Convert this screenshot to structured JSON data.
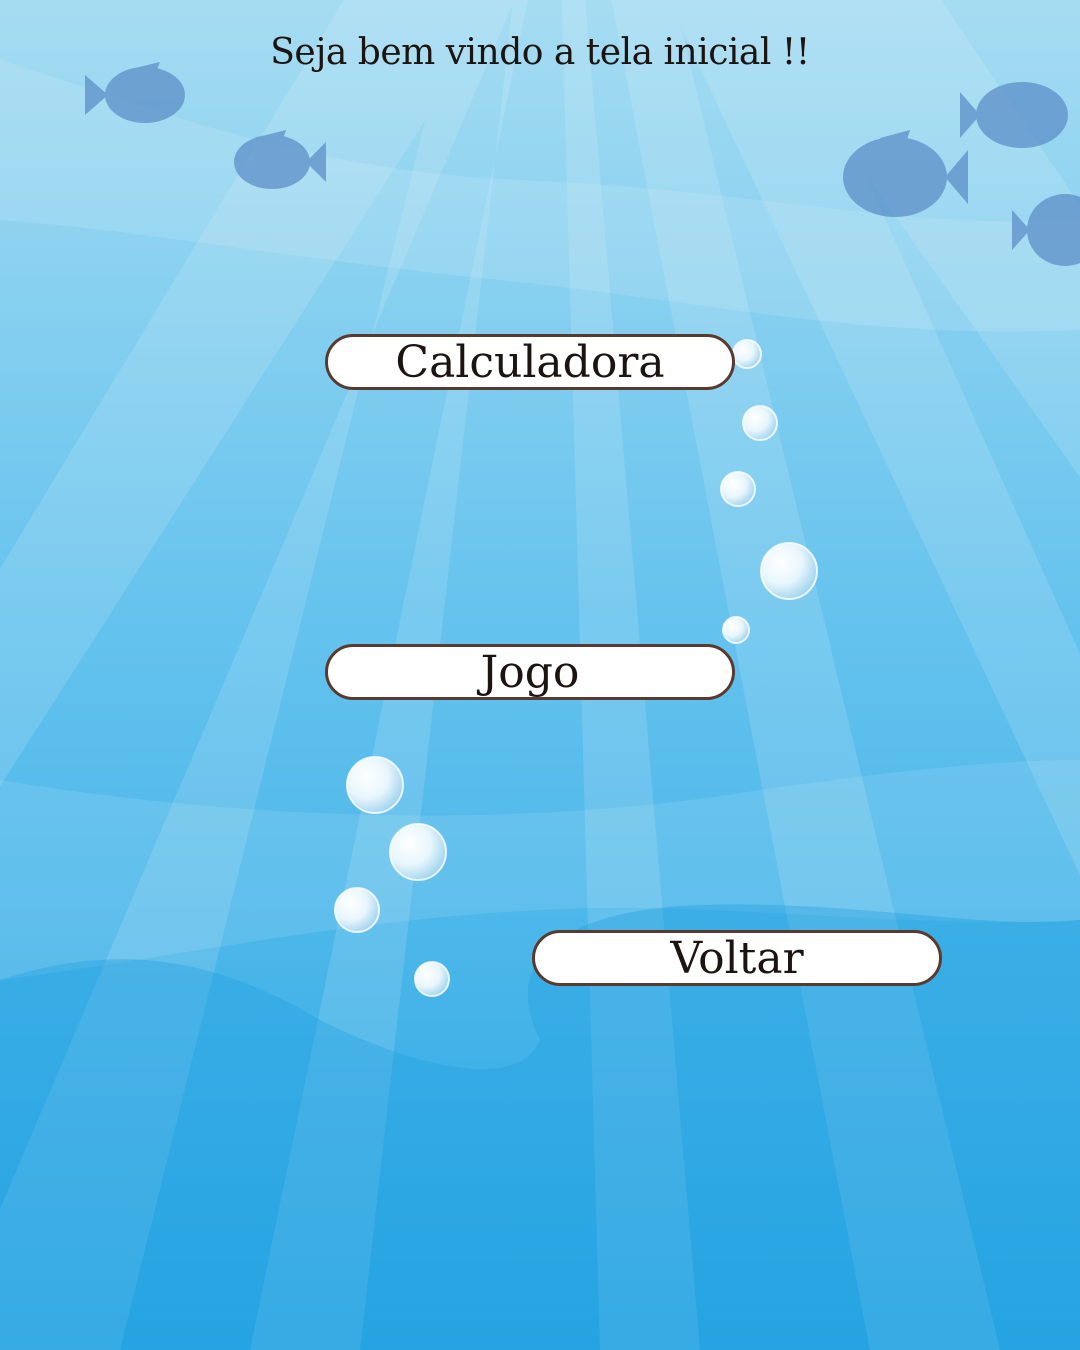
{
  "header": {
    "title": "Seja bem vindo a tela inicial !!"
  },
  "menu": {
    "calculator_label": "Calculadora",
    "game_label": "Jogo",
    "back_label": "Voltar"
  },
  "theme": {
    "background_top": "#9fd6f0",
    "background_bottom": "#2aa9e6",
    "button_bg": "#ffffff",
    "button_border": "#5a3a2e",
    "text_color": "#1c1410"
  },
  "decor": {
    "background_icon": "underwater-scene-icon",
    "fish_icon": "fish-icon",
    "bubble_icon": "bubble-icon"
  }
}
